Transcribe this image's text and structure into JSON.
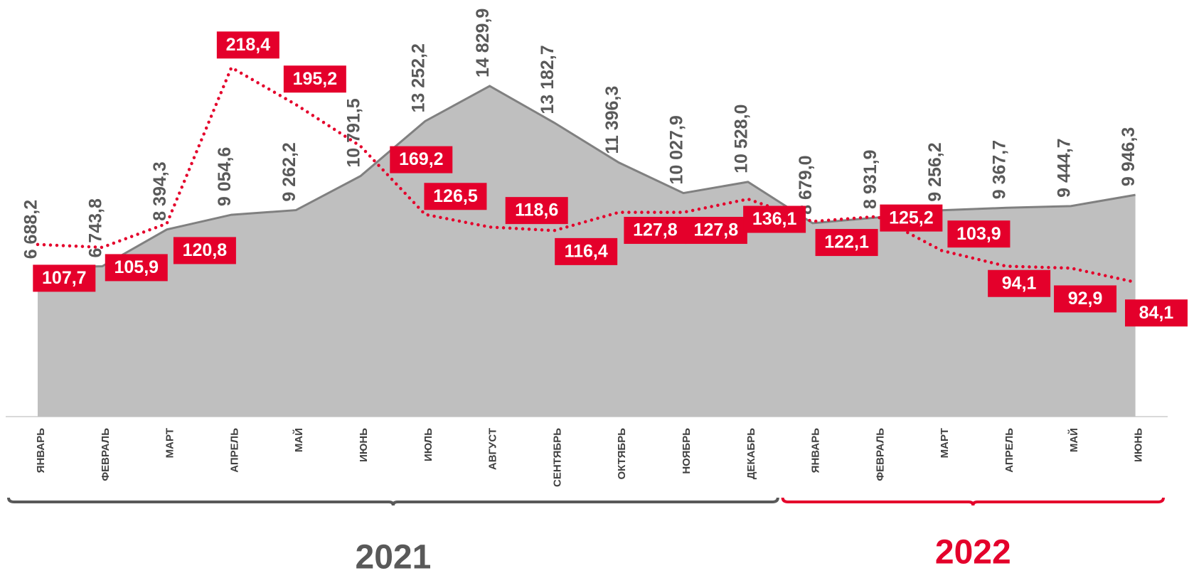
{
  "chart_data": {
    "type": "combo",
    "categories": [
      "ЯНВАРЬ",
      "ФЕВРАЛЬ",
      "МАРТ",
      "АПРЕЛЬ",
      "МАЙ",
      "ИЮНЬ",
      "ИЮЛЬ",
      "АВГУСТ",
      "СЕНТЯБРЬ",
      "ОКТЯБРЬ",
      "НОЯБРЬ",
      "ДЕКАБРЬ",
      "ЯНВАРЬ",
      "ФЕВРАЛЬ",
      "МАРТ",
      "АПРЕЛЬ",
      "МАЙ",
      "ИЮНЬ"
    ],
    "series": [
      {
        "type": "area",
        "color": "#bfbfbf",
        "line_color": "#808080",
        "values": [
          6688.2,
          6743.8,
          8394.3,
          9054.6,
          9262.2,
          10791.5,
          13252.2,
          14829.9,
          13182.7,
          11396.3,
          10027.9,
          10528.0,
          8679.0,
          8931.9,
          9256.2,
          9367.7,
          9444.7,
          9946.3
        ],
        "value_labels": [
          "6 688,2",
          "6 743,8",
          "8 394,3",
          "9 054,6",
          "9 262,2",
          "10 791,5",
          "13 252,2",
          "14 829,9",
          "13 182,7",
          "11 396,3",
          "10 027,9",
          "10 528,0",
          "8 679,0",
          "8 931,9",
          "9 256,2",
          "9 367,7",
          "9 444,7",
          "9 946,3"
        ]
      },
      {
        "type": "dotted",
        "color": "#e4002b",
        "values": [
          107.7,
          105.9,
          120.8,
          218.4,
          195.2,
          169.2,
          126.5,
          118.6,
          116.4,
          127.8,
          127.8,
          136.1,
          122.1,
          125.2,
          103.9,
          94.1,
          92.9,
          84.1
        ],
        "value_labels": [
          "107,7",
          "105,9",
          "120,8",
          "218,4",
          "195,2",
          "169,2",
          "126,5",
          "118,6",
          "116,4",
          "127,8",
          "127,8",
          "136,1",
          "122,1",
          "125,2",
          "103,9",
          "94,1",
          "92,9",
          "84,1"
        ]
      }
    ],
    "groups": [
      {
        "label": "2021",
        "start": 0,
        "end": 11,
        "color": "#595959"
      },
      {
        "label": "2022",
        "start": 12,
        "end": 17,
        "color": "#e4002b"
      }
    ]
  }
}
